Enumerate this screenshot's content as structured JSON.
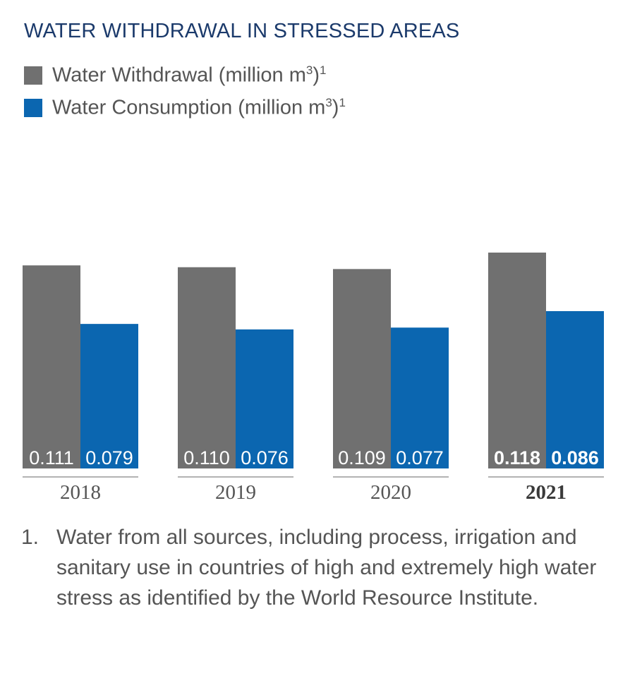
{
  "title": "WATER WITHDRAWAL IN STRESSED AREAS",
  "legend": [
    {
      "label": "Water Withdrawal (million m",
      "sup": "3",
      "suffix": ")",
      "note": "1",
      "color": "#707070"
    },
    {
      "label": "Water Consumption (million m",
      "sup": "3",
      "suffix": ")",
      "note": "1",
      "color": "#0b66b0"
    }
  ],
  "chart_data": {
    "type": "bar",
    "categories": [
      "2018",
      "2019",
      "2020",
      "2021"
    ],
    "highlight_category": "2021",
    "series": [
      {
        "name": "Water Withdrawal (million m3)",
        "values": [
          0.111,
          0.11,
          0.109,
          0.118
        ],
        "labels": [
          "0.111",
          "0.110",
          "0.109",
          "0.118"
        ],
        "color": "#707070"
      },
      {
        "name": "Water Consumption (million m3)",
        "values": [
          0.079,
          0.076,
          0.077,
          0.086
        ],
        "labels": [
          "0.079",
          "0.076",
          "0.077",
          "0.086"
        ],
        "color": "#0b66b0"
      }
    ],
    "ylim": [
      0,
      0.118
    ],
    "grid": false,
    "legend_position": "top-left"
  },
  "footnote": {
    "number": "1.",
    "text": "Water from all sources, including process, irrigation and sanitary use in countries of high and extremely high water stress as identified by the World Resource Institute."
  }
}
